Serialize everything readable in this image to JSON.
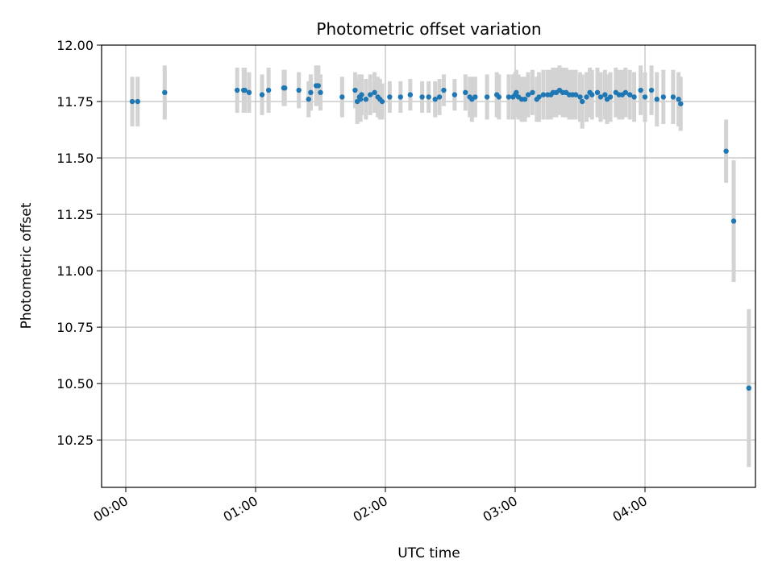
{
  "chart_data": {
    "type": "scatter",
    "title": "Photometric offset variation",
    "xlabel": "UTC time",
    "ylabel": "Photometric offset",
    "ylim": [
      10.04,
      12.0
    ],
    "xlim_minutes": [
      -2,
      281
    ],
    "grid": true,
    "x_tick_labels": [
      "00:00",
      "01:00",
      "02:00",
      "03:00",
      "04:00"
    ],
    "x_tick_minutes": [
      0,
      60,
      120,
      180,
      240
    ],
    "y_ticks": [
      12.0,
      11.75,
      11.5,
      11.25,
      11.0,
      10.75,
      10.5,
      10.25
    ],
    "y_tick_labels": [
      "12.00",
      "11.75",
      "11.50",
      "11.25",
      "11.00",
      "10.75",
      "10.50",
      "10.25"
    ],
    "colors": {
      "points": "#1f77b4",
      "errorbars": "#d3d3d3",
      "grid": "#b0b0b0"
    },
    "series": [
      {
        "x_minutes": [
          3,
          5.5,
          18,
          51.5,
          54.5,
          55,
          57,
          63,
          66,
          73,
          73.5,
          80,
          84.5,
          85.5,
          88,
          89,
          90,
          100,
          106,
          107,
          108,
          108.5,
          109,
          111,
          113,
          115,
          116.5,
          117.5,
          118.5,
          122,
          127,
          131.5,
          137,
          140,
          143,
          145,
          147,
          152,
          157,
          159,
          160,
          161.5,
          167,
          171.5,
          172.5,
          177,
          179,
          180,
          180.5,
          181.5,
          183,
          184.5,
          186,
          188,
          190,
          191,
          193,
          195,
          196.5,
          197.5,
          199,
          200.5,
          202,
          203.5,
          205,
          206.5,
          208,
          210,
          211,
          213,
          214.5,
          215.5,
          218,
          219.5,
          221.5,
          222.5,
          224,
          226.5,
          228,
          229.5,
          231,
          233,
          235,
          238,
          240,
          243,
          245.5,
          248.5,
          253,
          255.5,
          256.5,
          277.5,
          281,
          288
        ],
        "y": [
          11.75,
          11.75,
          11.79,
          11.8,
          11.8,
          11.8,
          11.79,
          11.78,
          11.8,
          11.81,
          11.81,
          11.8,
          11.76,
          11.79,
          11.82,
          11.82,
          11.79,
          11.77,
          11.8,
          11.75,
          11.77,
          11.76,
          11.78,
          11.76,
          11.78,
          11.79,
          11.77,
          11.76,
          11.75,
          11.77,
          11.77,
          11.78,
          11.77,
          11.77,
          11.76,
          11.77,
          11.8,
          11.78,
          11.79,
          11.77,
          11.76,
          11.77,
          11.77,
          11.78,
          11.77,
          11.77,
          11.77,
          11.78,
          11.79,
          11.77,
          11.76,
          11.76,
          11.78,
          11.79,
          11.76,
          11.77,
          11.78,
          11.78,
          11.78,
          11.79,
          11.79,
          11.8,
          11.79,
          11.79,
          11.78,
          11.78,
          11.78,
          11.77,
          11.75,
          11.77,
          11.79,
          11.78,
          11.79,
          11.77,
          11.78,
          11.76,
          11.77,
          11.79,
          11.78,
          11.78,
          11.79,
          11.78,
          11.77,
          11.8,
          11.77,
          11.8,
          11.76,
          11.77,
          11.77,
          11.76,
          11.74,
          11.53,
          11.22,
          10.48
        ],
        "err": [
          0.11,
          0.11,
          0.12,
          0.1,
          0.1,
          0.1,
          0.09,
          0.09,
          0.1,
          0.08,
          0.08,
          0.08,
          0.08,
          0.08,
          0.09,
          0.09,
          0.08,
          0.09,
          0.08,
          0.1,
          0.1,
          0.1,
          0.09,
          0.09,
          0.09,
          0.09,
          0.09,
          0.09,
          0.08,
          0.07,
          0.07,
          0.07,
          0.07,
          0.07,
          0.08,
          0.08,
          0.07,
          0.07,
          0.08,
          0.09,
          0.1,
          0.09,
          0.1,
          0.1,
          0.1,
          0.1,
          0.1,
          0.1,
          0.1,
          0.1,
          0.1,
          0.1,
          0.1,
          0.1,
          0.1,
          0.11,
          0.11,
          0.11,
          0.11,
          0.11,
          0.11,
          0.11,
          0.11,
          0.11,
          0.11,
          0.11,
          0.11,
          0.11,
          0.12,
          0.11,
          0.11,
          0.11,
          0.11,
          0.11,
          0.11,
          0.11,
          0.11,
          0.11,
          0.11,
          0.11,
          0.11,
          0.11,
          0.11,
          0.11,
          0.11,
          0.11,
          0.12,
          0.12,
          0.12,
          0.12,
          0.12,
          0.14,
          0.27,
          0.35
        ]
      }
    ]
  }
}
